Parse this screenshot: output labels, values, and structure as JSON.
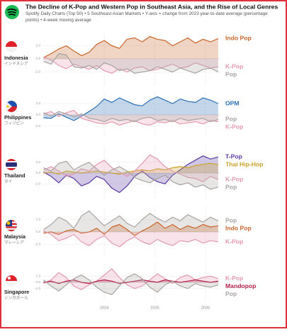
{
  "header": {
    "title": "The Decline of K-Pop and Western Pop in Southeast Asia, and the Rise of Local Genres",
    "subtitle": "Spotify Daily Charts (Top 50) • 5 Southeast Asian Markets • Y-axis = change from 2023 year-to-date average (percentage points) • 4-week moving average"
  },
  "chart_data": [
    {
      "type": "line",
      "title": "Indonesia",
      "subtitle": "インドネシア",
      "x": [
        2022.8,
        2022.95,
        2023.1,
        2023.25,
        2023.4,
        2023.55,
        2023.7,
        2023.85,
        2024.0,
        2024.15,
        2024.3,
        2024.45,
        2024.6,
        2024.75,
        2024.9,
        2025.05,
        2025.2,
        2025.35,
        2025.5,
        2025.65,
        2025.8,
        2025.95,
        2026.1,
        2026.25
      ],
      "xlim": [
        2022.78,
        2026.28
      ],
      "xticks": [
        2024,
        2025,
        2026
      ],
      "ylim": [
        -4,
        4
      ],
      "yticks": [
        {
          "value": 2,
          "label": "2.0"
        },
        {
          "value": 0,
          "label": "0.0"
        },
        {
          "value": -2,
          "label": "-2.0"
        }
      ],
      "series": [
        {
          "name": "Indo Pop",
          "color": "#c8652a",
          "values": [
            0.2,
            0.8,
            1.5,
            2.0,
            1.2,
            0.5,
            1.0,
            2.2,
            2.8,
            2.0,
            1.6,
            3.0,
            3.2,
            2.6,
            3.4,
            3.0,
            2.8,
            2.0,
            2.6,
            3.2,
            2.4,
            3.0,
            2.6,
            3.1
          ]
        },
        {
          "name": "K-Pop",
          "color": "#e39bb0",
          "values": [
            0.3,
            -0.2,
            -1.0,
            -1.5,
            -0.8,
            -1.2,
            -1.6,
            -1.0,
            -1.8,
            -2.2,
            -1.5,
            -2.0,
            -1.4,
            -1.2,
            -1.8,
            -1.6,
            -1.2,
            -0.8,
            -1.4,
            -1.2,
            -0.6,
            -1.0,
            -1.4,
            -1.2
          ]
        },
        {
          "name": "Pop",
          "color": "#a9a4a2",
          "values": [
            -0.4,
            -0.8,
            0.8,
            0.6,
            -1.2,
            -1.4,
            -1.0,
            -1.6,
            -0.6,
            -1.0,
            -1.8,
            -1.5,
            -2.2,
            -2.0,
            -1.8,
            -1.2,
            -1.6,
            -2.0,
            -1.4,
            -1.8,
            -2.2,
            -1.6,
            -1.4,
            -2.0
          ]
        }
      ]
    },
    {
      "type": "line",
      "title": "Philippines",
      "subtitle": "フィリピン",
      "x": [
        2022.8,
        2022.95,
        2023.1,
        2023.25,
        2023.4,
        2023.55,
        2023.7,
        2023.85,
        2024.0,
        2024.15,
        2024.3,
        2024.45,
        2024.6,
        2024.75,
        2024.9,
        2025.05,
        2025.2,
        2025.35,
        2025.5,
        2025.65,
        2025.8,
        2025.95,
        2026.1,
        2026.25
      ],
      "xlim": [
        2022.78,
        2026.28
      ],
      "xticks": [
        2024,
        2025,
        2026
      ],
      "ylim": [
        -4,
        4
      ],
      "yticks": [
        {
          "value": 2,
          "label": "2.0"
        },
        {
          "value": 0,
          "label": "0.0"
        },
        {
          "value": -2,
          "label": "-2.0"
        }
      ],
      "series": [
        {
          "name": "OPM",
          "color": "#2a6fb5",
          "values": [
            -0.5,
            -0.6,
            0.2,
            -0.4,
            -1.0,
            -0.2,
            0.6,
            1.5,
            2.8,
            2.2,
            3.0,
            2.4,
            1.8,
            1.6,
            2.6,
            3.2,
            2.6,
            2.0,
            2.8,
            2.4,
            2.2,
            3.0,
            2.6,
            2.0
          ]
        },
        {
          "name": "K-Pop",
          "color": "#e39bb0",
          "values": [
            0.2,
            0.6,
            -0.3,
            0.4,
            0.8,
            -0.6,
            -1.0,
            -1.4,
            -1.6,
            -1.2,
            -1.8,
            -1.4,
            -1.0,
            -1.6,
            -1.8,
            -1.2,
            -1.4,
            -1.0,
            -1.6,
            -1.4,
            -1.2,
            -1.6,
            -1.0,
            -1.2
          ]
        },
        {
          "name": "Pop",
          "color": "#a9a4a2",
          "values": [
            0.4,
            -0.2,
            0.6,
            0.2,
            -0.4,
            0.2,
            -0.6,
            -0.8,
            -1.2,
            -0.6,
            -1.0,
            -0.8,
            -1.2,
            -0.6,
            -0.4,
            -1.0,
            -0.8,
            -1.2,
            -0.6,
            -1.0,
            -0.8,
            -0.6,
            -1.2,
            -0.8
          ]
        }
      ]
    },
    {
      "type": "line",
      "title": "Thailand",
      "subtitle": "タイ",
      "x": [
        2022.8,
        2022.95,
        2023.1,
        2023.25,
        2023.4,
        2023.55,
        2023.7,
        2023.85,
        2024.0,
        2024.15,
        2024.3,
        2024.45,
        2024.6,
        2024.75,
        2024.9,
        2025.05,
        2025.2,
        2025.35,
        2025.5,
        2025.65,
        2025.8,
        2025.95,
        2026.1,
        2026.25
      ],
      "xlim": [
        2022.78,
        2026.28
      ],
      "xticks": [
        2024,
        2025,
        2026
      ],
      "ylim": [
        -5,
        5
      ],
      "yticks": [
        {
          "value": 2,
          "label": "2.0"
        },
        {
          "value": 0,
          "label": "0.0"
        },
        {
          "value": -2,
          "label": "-2.0"
        }
      ],
      "series": [
        {
          "name": "T-Pop",
          "color": "#5a3ba0",
          "values": [
            0.2,
            -0.6,
            -1.8,
            -0.4,
            -1.0,
            -2.4,
            -1.8,
            -0.6,
            -1.2,
            -2.8,
            -3.6,
            -2.4,
            -0.6,
            0.4,
            -0.8,
            -1.6,
            -2.0,
            -0.4,
            0.6,
            1.6,
            2.4,
            3.2,
            2.6,
            3.0
          ]
        },
        {
          "name": "Thai Hip-Hop",
          "color": "#c9a227",
          "values": [
            0.0,
            0.2,
            -0.2,
            0.4,
            0.2,
            0.0,
            0.2,
            0.4,
            0.2,
            0.0,
            -0.2,
            0.2,
            0.4,
            0.6,
            0.4,
            0.8,
            0.6,
            1.0,
            1.2,
            1.0,
            1.4,
            1.6,
            1.8,
            1.6
          ]
        },
        {
          "name": "K-Pop",
          "color": "#e39bb0",
          "values": [
            0.6,
            1.2,
            0.4,
            -0.6,
            -0.2,
            0.8,
            0.4,
            1.6,
            2.4,
            1.0,
            0.2,
            -0.6,
            0.4,
            1.8,
            3.4,
            2.6,
            1.2,
            0.4,
            -0.2,
            -0.8,
            -1.0,
            -1.6,
            -0.6,
            -1.2
          ]
        },
        {
          "name": "Pop",
          "color": "#a9a4a2",
          "values": [
            1.0,
            0.4,
            1.8,
            2.2,
            0.6,
            1.4,
            2.0,
            0.8,
            -0.4,
            0.6,
            1.2,
            0.4,
            -0.8,
            -1.4,
            -1.8,
            -1.0,
            -0.4,
            -1.6,
            -2.2,
            -1.8,
            -2.6,
            -2.2,
            -3.0,
            -2.6
          ]
        }
      ]
    },
    {
      "type": "line",
      "title": "Malaysia",
      "subtitle": "マレーシア",
      "x": [
        2022.8,
        2022.95,
        2023.1,
        2023.25,
        2023.4,
        2023.55,
        2023.7,
        2023.85,
        2024.0,
        2024.15,
        2024.3,
        2024.45,
        2024.6,
        2024.75,
        2024.9,
        2025.05,
        2025.2,
        2025.35,
        2025.5,
        2025.65,
        2025.8,
        2025.95,
        2026.1,
        2026.25
      ],
      "xlim": [
        2022.78,
        2026.28
      ],
      "xticks": [
        2024,
        2025,
        2026
      ],
      "ylim": [
        -4,
        4
      ],
      "yticks": [
        {
          "value": 2,
          "label": "2.0"
        },
        {
          "value": 0,
          "label": "0.0"
        },
        {
          "value": -2,
          "label": "-2.0"
        }
      ],
      "series": [
        {
          "name": "Pop",
          "color": "#a9a4a2",
          "values": [
            0.4,
            1.2,
            2.4,
            1.8,
            0.6,
            2.6,
            3.4,
            2.2,
            1.0,
            1.8,
            2.6,
            1.4,
            0.8,
            2.0,
            3.0,
            2.2,
            1.6,
            2.4,
            1.8,
            2.8,
            2.2,
            1.6,
            2.4,
            1.8
          ]
        },
        {
          "name": "Indo Pop",
          "color": "#c8652a",
          "values": [
            -0.2,
            0.0,
            -0.4,
            0.2,
            0.4,
            -0.2,
            0.0,
            0.6,
            -0.4,
            0.8,
            1.2,
            0.4,
            -0.6,
            0.2,
            0.8,
            1.6,
            0.6,
            1.2,
            0.4,
            1.0,
            0.6,
            1.2,
            0.8,
            1.0
          ]
        },
        {
          "name": "K-Pop",
          "color": "#e39bb0",
          "values": [
            0.2,
            -0.4,
            -1.4,
            -1.0,
            -0.4,
            -1.6,
            -2.2,
            -1.2,
            -0.6,
            -1.8,
            -2.4,
            -1.4,
            -0.8,
            -1.6,
            -2.0,
            -1.2,
            -1.8,
            -2.2,
            -1.4,
            -1.6,
            -1.2,
            -1.8,
            -1.4,
            -1.6
          ]
        }
      ]
    },
    {
      "type": "line",
      "title": "Singapore",
      "subtitle": "シンガポール",
      "x": [
        2022.8,
        2022.95,
        2023.1,
        2023.25,
        2023.4,
        2023.55,
        2023.7,
        2023.85,
        2024.0,
        2024.15,
        2024.3,
        2024.45,
        2024.6,
        2024.75,
        2024.9,
        2025.05,
        2025.2,
        2025.35,
        2025.5,
        2025.65,
        2025.8,
        2025.95,
        2026.1,
        2026.25
      ],
      "xlim": [
        2022.78,
        2026.28
      ],
      "xticks": [
        2024,
        2025,
        2026
      ],
      "ylim": [
        -3,
        3
      ],
      "yticks": [
        {
          "value": 1,
          "label": "1.0"
        },
        {
          "value": 0,
          "label": "0.0"
        },
        {
          "value": -1,
          "label": "-1.0"
        }
      ],
      "series": [
        {
          "name": "K-Pop",
          "color": "#e39bb0",
          "values": [
            -0.2,
            0.4,
            1.6,
            0.8,
            -0.6,
            -1.2,
            -0.4,
            0.2,
            1.2,
            2.2,
            0.8,
            -0.4,
            -1.0,
            -0.6,
            0.4,
            1.4,
            0.6,
            -0.2,
            0.8,
            1.2,
            0.4,
            0.8,
            1.0,
            0.6
          ]
        },
        {
          "name": "Mandopop",
          "color": "#b3204a",
          "values": [
            0.0,
            0.2,
            -0.2,
            0.2,
            0.4,
            0.0,
            -0.2,
            0.2,
            0.4,
            0.2,
            -0.2,
            0.0,
            0.2,
            0.4,
            0.2,
            0.0,
            0.4,
            0.2,
            0.0,
            0.2,
            0.4,
            0.2,
            0.0,
            0.2
          ]
        },
        {
          "name": "Pop",
          "color": "#a9a4a2",
          "values": [
            0.4,
            -0.6,
            -1.4,
            -0.4,
            0.6,
            1.2,
            0.4,
            -0.8,
            -1.6,
            -2.0,
            -0.6,
            0.8,
            1.4,
            0.6,
            -0.8,
            -1.6,
            -0.4,
            0.2,
            -0.6,
            -1.0,
            -0.2,
            -0.6,
            -0.8,
            -0.4
          ]
        }
      ]
    }
  ]
}
